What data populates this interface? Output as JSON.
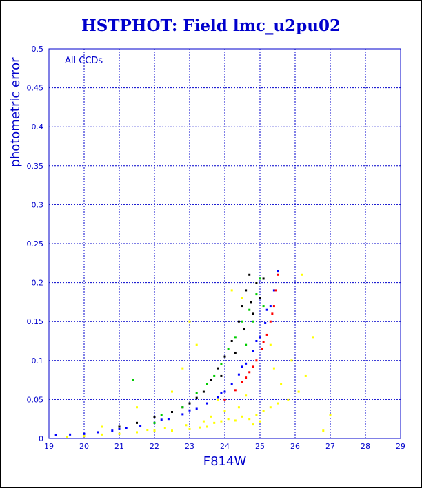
{
  "chart_data": {
    "type": "scatter",
    "title": "HSTPHOT: Field lmc_u2pu02",
    "xlabel": "F814W",
    "ylabel": "photometric error",
    "annotation": "All CCDs",
    "xlim": [
      19,
      29
    ],
    "ylim": [
      0,
      0.5
    ],
    "xticks": [
      "19",
      "20",
      "21",
      "22",
      "23",
      "24",
      "25",
      "26",
      "27",
      "28",
      "29"
    ],
    "yticks": [
      "0",
      "0.05",
      "0.1",
      "0.15",
      "0.2",
      "0.25",
      "0.3",
      "0.35",
      "0.4",
      "0.45",
      "0.5"
    ],
    "grid": true,
    "series": [
      {
        "color": "#0000ff",
        "points": [
          [
            19.2,
            0.004
          ],
          [
            19.6,
            0.005
          ],
          [
            20.0,
            0.006
          ],
          [
            20.4,
            0.008
          ],
          [
            20.8,
            0.01
          ],
          [
            21.2,
            0.013
          ],
          [
            21.6,
            0.016
          ],
          [
            22.0,
            0.02
          ],
          [
            22.4,
            0.025
          ],
          [
            22.8,
            0.031
          ],
          [
            23.2,
            0.038
          ],
          [
            23.5,
            0.045
          ],
          [
            23.8,
            0.053
          ],
          [
            24.0,
            0.06
          ],
          [
            24.2,
            0.07
          ],
          [
            24.4,
            0.082
          ],
          [
            24.6,
            0.096
          ],
          [
            24.8,
            0.112
          ],
          [
            25.0,
            0.13
          ],
          [
            25.15,
            0.148
          ],
          [
            25.3,
            0.17
          ],
          [
            25.4,
            0.19
          ],
          [
            25.5,
            0.215
          ],
          [
            25.2,
            0.165
          ],
          [
            24.9,
            0.125
          ],
          [
            24.5,
            0.092
          ],
          [
            23.9,
            0.058
          ],
          [
            23.0,
            0.036
          ],
          [
            22.2,
            0.024
          ],
          [
            21.0,
            0.012
          ]
        ]
      },
      {
        "color": "#ff0000",
        "points": [
          [
            24.0,
            0.05
          ],
          [
            24.3,
            0.062
          ],
          [
            24.5,
            0.072
          ],
          [
            24.7,
            0.085
          ],
          [
            24.9,
            0.1
          ],
          [
            25.05,
            0.115
          ],
          [
            25.2,
            0.133
          ],
          [
            25.3,
            0.15
          ],
          [
            25.4,
            0.17
          ],
          [
            25.45,
            0.19
          ],
          [
            25.5,
            0.21
          ],
          [
            24.6,
            0.078
          ],
          [
            24.8,
            0.092
          ],
          [
            25.1,
            0.124
          ],
          [
            25.35,
            0.16
          ]
        ]
      },
      {
        "color": "#000000",
        "points": [
          [
            21.0,
            0.015
          ],
          [
            21.5,
            0.02
          ],
          [
            22.0,
            0.027
          ],
          [
            22.5,
            0.034
          ],
          [
            23.0,
            0.045
          ],
          [
            23.4,
            0.06
          ],
          [
            23.6,
            0.075
          ],
          [
            23.8,
            0.09
          ],
          [
            24.0,
            0.105
          ],
          [
            24.2,
            0.125
          ],
          [
            24.4,
            0.15
          ],
          [
            24.5,
            0.17
          ],
          [
            24.6,
            0.19
          ],
          [
            24.7,
            0.21
          ],
          [
            24.9,
            0.2
          ],
          [
            25.0,
            0.18
          ],
          [
            24.8,
            0.16
          ],
          [
            24.3,
            0.11
          ],
          [
            23.9,
            0.08
          ],
          [
            23.2,
            0.052
          ],
          [
            22.8,
            0.04
          ],
          [
            24.55,
            0.14
          ],
          [
            24.75,
            0.175
          ],
          [
            25.1,
            0.205
          ]
        ]
      },
      {
        "color": "#00cc00",
        "points": [
          [
            22.2,
            0.03
          ],
          [
            22.8,
            0.04
          ],
          [
            23.2,
            0.058
          ],
          [
            23.5,
            0.07
          ],
          [
            23.7,
            0.08
          ],
          [
            23.9,
            0.095
          ],
          [
            24.1,
            0.115
          ],
          [
            24.3,
            0.13
          ],
          [
            24.5,
            0.15
          ],
          [
            24.7,
            0.165
          ],
          [
            24.9,
            0.185
          ],
          [
            25.0,
            0.205
          ],
          [
            21.4,
            0.075
          ],
          [
            22.0,
            0.02
          ],
          [
            24.6,
            0.12
          ],
          [
            24.8,
            0.15
          ],
          [
            25.1,
            0.17
          ]
        ]
      },
      {
        "color": "#ffff00",
        "points": [
          [
            19.5,
            0.002
          ],
          [
            20.0,
            0.003
          ],
          [
            20.5,
            0.005
          ],
          [
            21.0,
            0.006
          ],
          [
            21.5,
            0.008
          ],
          [
            22.0,
            0.01
          ],
          [
            22.5,
            0.01
          ],
          [
            23.0,
            0.012
          ],
          [
            23.3,
            0.014
          ],
          [
            23.5,
            0.015
          ],
          [
            23.7,
            0.02
          ],
          [
            23.9,
            0.022
          ],
          [
            24.1,
            0.025
          ],
          [
            24.3,
            0.023
          ],
          [
            24.5,
            0.028
          ],
          [
            24.7,
            0.025
          ],
          [
            24.9,
            0.03
          ],
          [
            25.1,
            0.035
          ],
          [
            25.3,
            0.04
          ],
          [
            25.5,
            0.045
          ],
          [
            25.8,
            0.05
          ],
          [
            26.1,
            0.06
          ],
          [
            26.3,
            0.08
          ],
          [
            25.9,
            0.1
          ],
          [
            25.3,
            0.12
          ],
          [
            24.5,
            0.18
          ],
          [
            24.2,
            0.19
          ],
          [
            23.2,
            0.12
          ],
          [
            23.0,
            0.15
          ],
          [
            22.8,
            0.09
          ],
          [
            22.5,
            0.06
          ],
          [
            21.5,
            0.04
          ],
          [
            20.5,
            0.015
          ],
          [
            26.5,
            0.13
          ],
          [
            26.2,
            0.21
          ],
          [
            27.0,
            0.03
          ],
          [
            26.8,
            0.01
          ],
          [
            23.8,
            0.05
          ],
          [
            24.0,
            0.035
          ],
          [
            24.4,
            0.04
          ],
          [
            24.8,
            0.018
          ],
          [
            25.0,
            0.022
          ],
          [
            23.6,
            0.028
          ],
          [
            23.4,
            0.022
          ],
          [
            22.9,
            0.017
          ],
          [
            22.3,
            0.013
          ],
          [
            21.8,
            0.011
          ],
          [
            24.6,
            0.055
          ],
          [
            25.6,
            0.07
          ],
          [
            25.4,
            0.09
          ]
        ]
      }
    ]
  }
}
